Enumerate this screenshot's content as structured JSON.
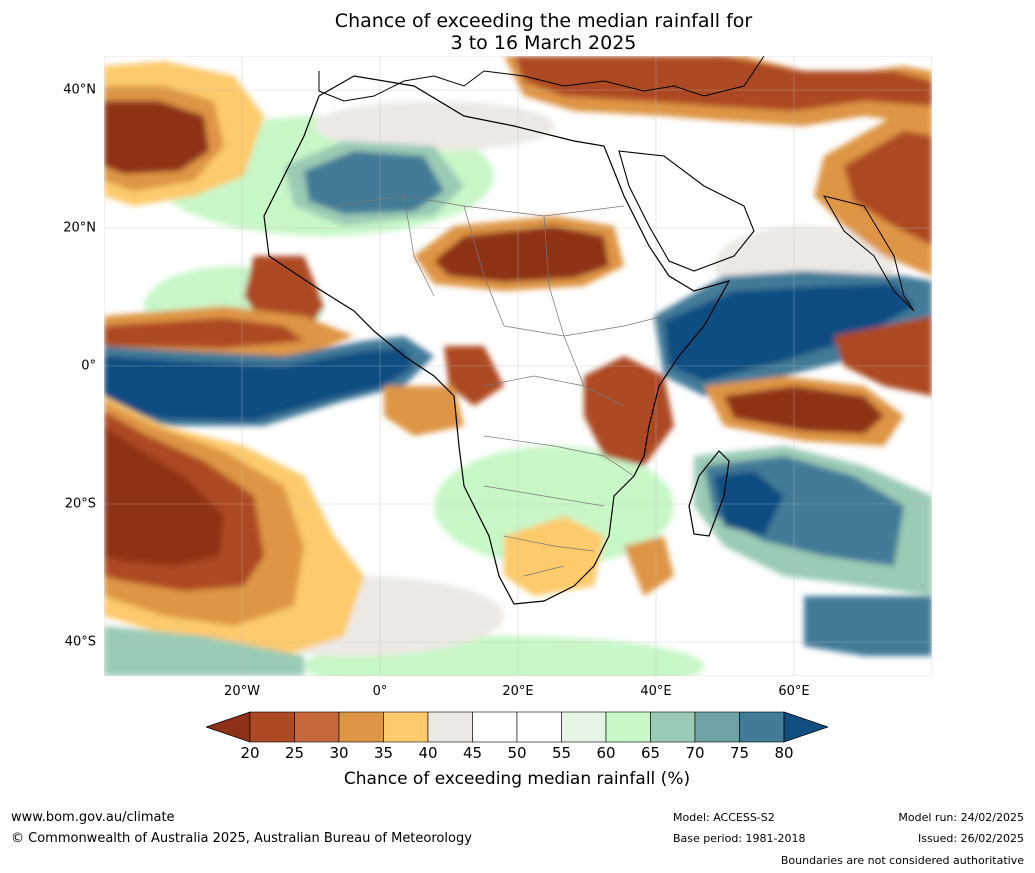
{
  "title": {
    "line1": "Chance of exceeding the median rainfall for",
    "line2": "3 to 16 March 2025"
  },
  "axes": {
    "lat_labels": [
      "40°N",
      "20°N",
      "0°",
      "20°S",
      "40°S"
    ],
    "lon_labels": [
      "20°W",
      "0°",
      "20°E",
      "40°E",
      "60°E"
    ]
  },
  "colorbar": {
    "ticks": [
      "20",
      "25",
      "30",
      "35",
      "40",
      "45",
      "50",
      "55",
      "60",
      "65",
      "70",
      "75",
      "80"
    ],
    "colors": [
      "#8e3118",
      "#ad4a24",
      "#c8673a",
      "#de9545",
      "#fdca6c",
      "#ece9e4",
      "#ffffff",
      "#ffffff",
      "#e6f5e6",
      "#c8f7c8",
      "#9acbb4",
      "#6ea2a4",
      "#437a98",
      "#114e82"
    ],
    "label": "Chance of exceeding median rainfall (%)"
  },
  "footer": {
    "website": "www.bom.gov.au/climate",
    "copyright": "© Commonwealth of Australia 2025, Australian Bureau of Meteorology",
    "model": "Model: ACCESS-S2",
    "base_period": "Base period: 1981-2018",
    "model_run": "Model run: 24/02/2025",
    "issued": "Issued: 26/02/2025",
    "disclaimer": "Boundaries are not considered authoritative"
  }
}
